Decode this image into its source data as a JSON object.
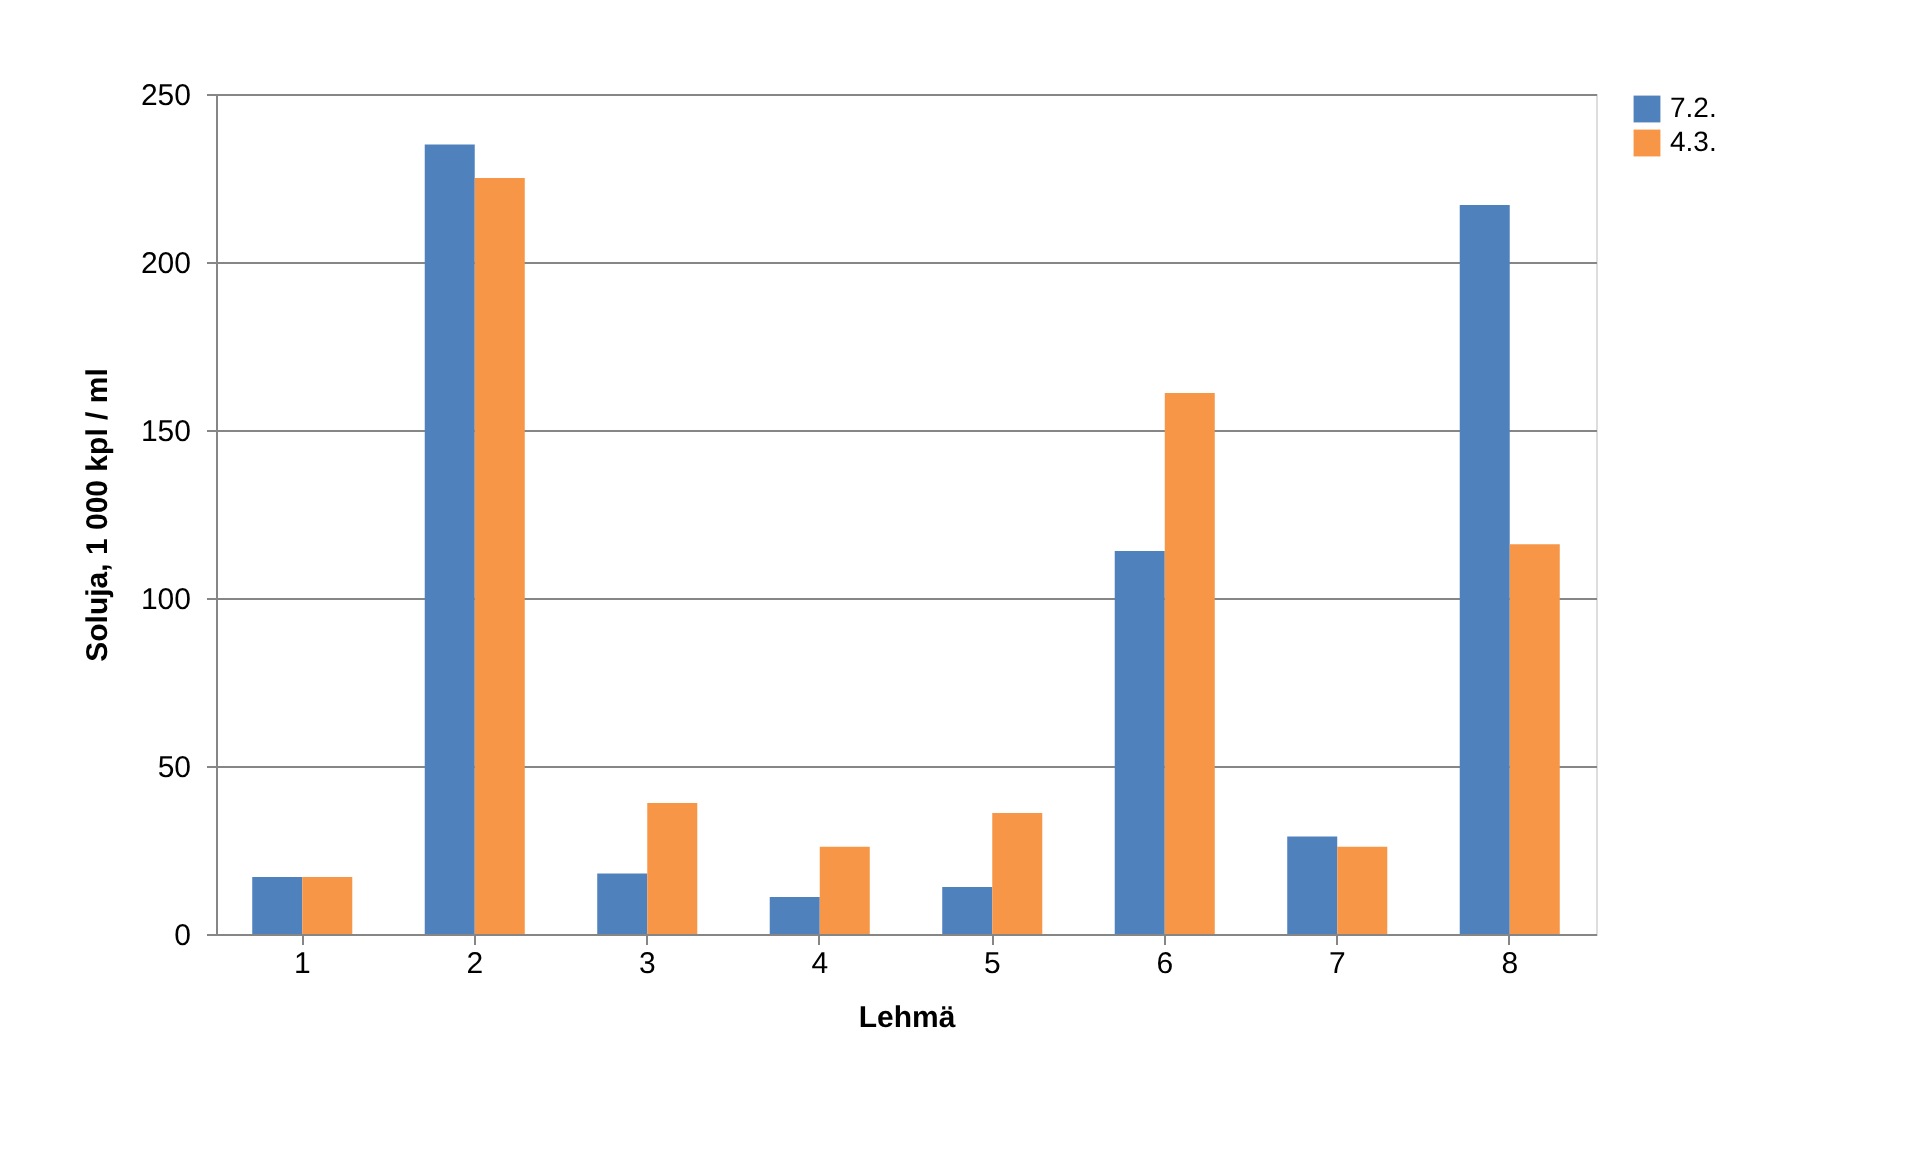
{
  "chart_data": {
    "type": "bar",
    "xlabel": "Lehmä",
    "ylabel": "Soluja, 1 000 kpl / ml",
    "categories": [
      "1",
      "2",
      "3",
      "4",
      "5",
      "6",
      "7",
      "8"
    ],
    "series": [
      {
        "name": "7.2.",
        "color": "#4f81bd",
        "values": [
          17,
          235,
          18,
          11,
          14,
          114,
          29,
          217
        ]
      },
      {
        "name": "4.3.",
        "color": "#f79646",
        "values": [
          17,
          225,
          39,
          26,
          36,
          161,
          26,
          116
        ]
      }
    ],
    "ylim": [
      0,
      250
    ],
    "yticks": [
      0,
      50,
      100,
      150,
      200,
      250
    ],
    "grid": "y",
    "legend": "right"
  }
}
